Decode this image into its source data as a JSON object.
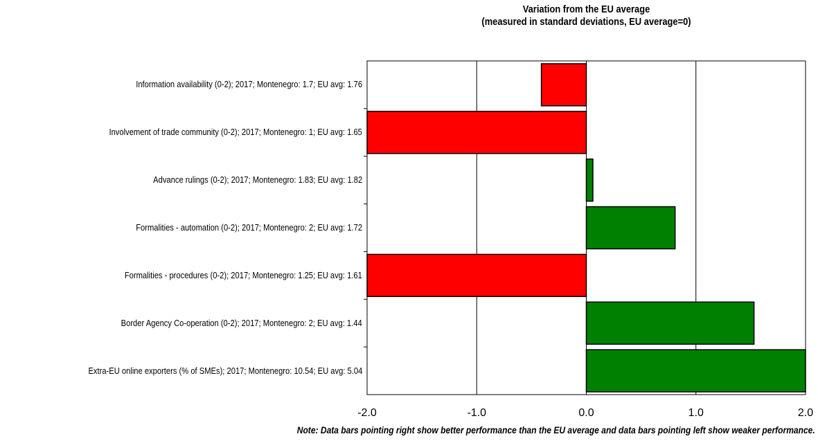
{
  "chart_data": {
    "type": "bar",
    "orientation": "horizontal",
    "title": "Variation from the EU average",
    "subtitle": "(measured in standard deviations, EU average=0)",
    "categories": [
      "Information availability (0-2); 2017; Montenegro: 1.7; EU avg: 1.76",
      "Involvement of trade community (0-2); 2017; Montenegro: 1; EU avg: 1.65",
      "Advance rulings (0-2); 2017; Montenegro: 1.83; EU avg: 1.82",
      "Formalities - automation (0-2); 2017; Montenegro: 2; EU avg: 1.72",
      "Formalities - procedures (0-2); 2017; Montenegro: 1.25; EU avg: 1.61",
      "Border Agency Co-operation (0-2); 2017; Montenegro: 2; EU avg: 1.44",
      "Extra-EU online exporters (% of SMEs); 2017; Montenegro: 10.54; EU avg: 5.04"
    ],
    "values": [
      -0.41,
      -2.0,
      0.06,
      0.81,
      -2.0,
      1.53,
      2.0
    ],
    "xlim": [
      -2.0,
      2.0
    ],
    "ticks": [
      "-2.0",
      "-1.0",
      "0.0",
      "1.0",
      "2.0"
    ],
    "tick_values": [
      -2,
      -1,
      0,
      1,
      2
    ],
    "grid": "vertical",
    "colors": {
      "positive": "#008000",
      "negative": "#ff0000",
      "border": "#000000"
    },
    "note": "Note: Data bars pointing right show better performance than the EU average and data bars pointing left show weaker performance."
  }
}
